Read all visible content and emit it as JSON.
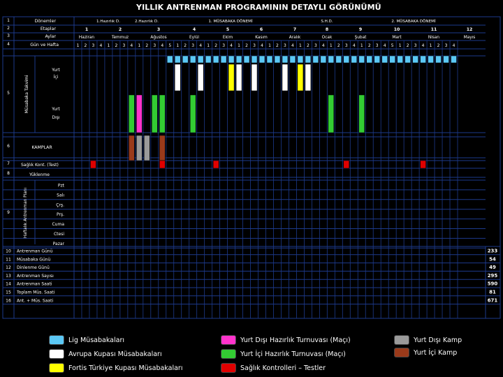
{
  "title": "YILLIK ANTRENMAN PROGRAMININ DETAYLI GÖRÜNÜMÜ",
  "row_numbers": [
    "1",
    "2",
    "3",
    "4",
    "5",
    "6",
    "7",
    "8",
    "9",
    "10",
    "11",
    "12",
    "13",
    "14",
    "15",
    "16"
  ],
  "header_labels": {
    "donemler": "Dönemler",
    "etaplar": "Etaplar",
    "aylar": "Aylar",
    "gun_hafta": "Gün ve Hafta",
    "musabaka_takvimi": "Müsabaka Takvimi",
    "yurt_ici": "Yurt İçi",
    "yurt_disi": "Yurt Dışı",
    "kamplar": "KAMPLAR",
    "saglik": "Sağlık Kont. (Test)",
    "yuklenme": "Yüklenme",
    "haftalik_plan": "Haftalık Antrenman Planı"
  },
  "periods": [
    {
      "label": "1.Hazırlık D."
    },
    {
      "label": "2.Hazırlık D."
    },
    {
      "label": "1. MÜSABAKA DÖNEMİ"
    },
    {
      "label": "S.H.D."
    },
    {
      "label": "2. MÜSABAKA DÖNEMİ"
    }
  ],
  "stages": [
    "1",
    "2",
    "3",
    "4",
    "5",
    "6",
    "7",
    "8",
    "9",
    "10",
    "11",
    "12"
  ],
  "months": [
    "Haziran",
    "Temmuz",
    "Ağustos",
    "Eylül",
    "Ekim",
    "Kasım",
    "Aralık",
    "Ocak",
    "Şubat",
    "Mart",
    "Nisan",
    "Mayıs"
  ],
  "weeks": [
    "1",
    "2",
    "3",
    "4",
    "1",
    "2",
    "3",
    "4",
    "1",
    "2",
    "3",
    "4",
    "5",
    "1",
    "2",
    "3",
    "4",
    "1",
    "2",
    "3",
    "4",
    "1",
    "2",
    "3",
    "4",
    "1",
    "2",
    "3",
    "4",
    "1",
    "2",
    "3",
    "4",
    "1",
    "2",
    "3",
    "4",
    "1",
    "2",
    "3",
    "4",
    "5",
    "1",
    "2",
    "3",
    "4",
    "1",
    "2",
    "3",
    "4"
  ],
  "days": [
    "Pzt",
    "Salı",
    "Çrş.",
    "Prş.",
    "Cuma",
    "Ctesi",
    "Pazar"
  ],
  "summary_labels": [
    "Antrenman Günü",
    "Müsabaka Günü",
    "Dinlenme Günü",
    "Antrenman Sayısı",
    "Antrenman Saati",
    "Toplam Müs. Saati",
    "Ant. + Müs. Saati"
  ],
  "summary_totals": [
    "233",
    "54",
    "49",
    "295",
    "590",
    "81",
    "671"
  ],
  "legend": [
    {
      "label": "Lig Müsabakaları",
      "color": "#5bc8f5"
    },
    {
      "label": "Avrupa Kupası Müsabakaları",
      "color": "#ffffff"
    },
    {
      "label": "Fortis Türkiye Kupası Müsabakaları",
      "color": "#ffff00"
    },
    {
      "label": "Yurt Dışı Hazırlık Turnuvası (Maçı)",
      "color": "#ff33cc"
    },
    {
      "label": "Yurt İçi Hazırlık Turnuvası (Maçı)",
      "color": "#33cc33"
    },
    {
      "label": "Sağlık Kontrolleri – Testler",
      "color": "#e00000"
    },
    {
      "label": "Yurt Dışı Kamp",
      "color": "#9a9a9a"
    },
    {
      "label": "Yurt İçi Kamp",
      "color": "#9a3a1a"
    }
  ],
  "chart_data": {
    "type": "table",
    "title": "YILLIK ANTRENMAN PROGRAMININ DETAYLI GÖRÜNÜMÜ",
    "week_count": 50,
    "lig_weeks": [
      12,
      13,
      14,
      15,
      16,
      17,
      18,
      19,
      20,
      21,
      22,
      23,
      24,
      25,
      26,
      27,
      28,
      29,
      30,
      31,
      32,
      33,
      34,
      35,
      36,
      37,
      38,
      39,
      40,
      41,
      42,
      43,
      44,
      45,
      46,
      47,
      48,
      49
    ],
    "avrupa_weeks": [
      13,
      16,
      21,
      23,
      27,
      30
    ],
    "turkiye_kupasi_weeks": [
      20,
      29
    ],
    "yurtdisi_hazirlik_weeks": [
      8
    ],
    "yurtici_hazirlik_weeks": [
      7,
      10,
      11,
      15,
      33,
      37
    ],
    "yurtdisi_kamp_weeks": [
      8,
      9
    ],
    "yurtici_kamp_weeks": [
      7,
      11
    ],
    "saglik_weeks": [
      2,
      11,
      18,
      35,
      45
    ],
    "summary_totals": [
      233,
      54,
      49,
      295,
      590,
      81,
      671
    ]
  }
}
